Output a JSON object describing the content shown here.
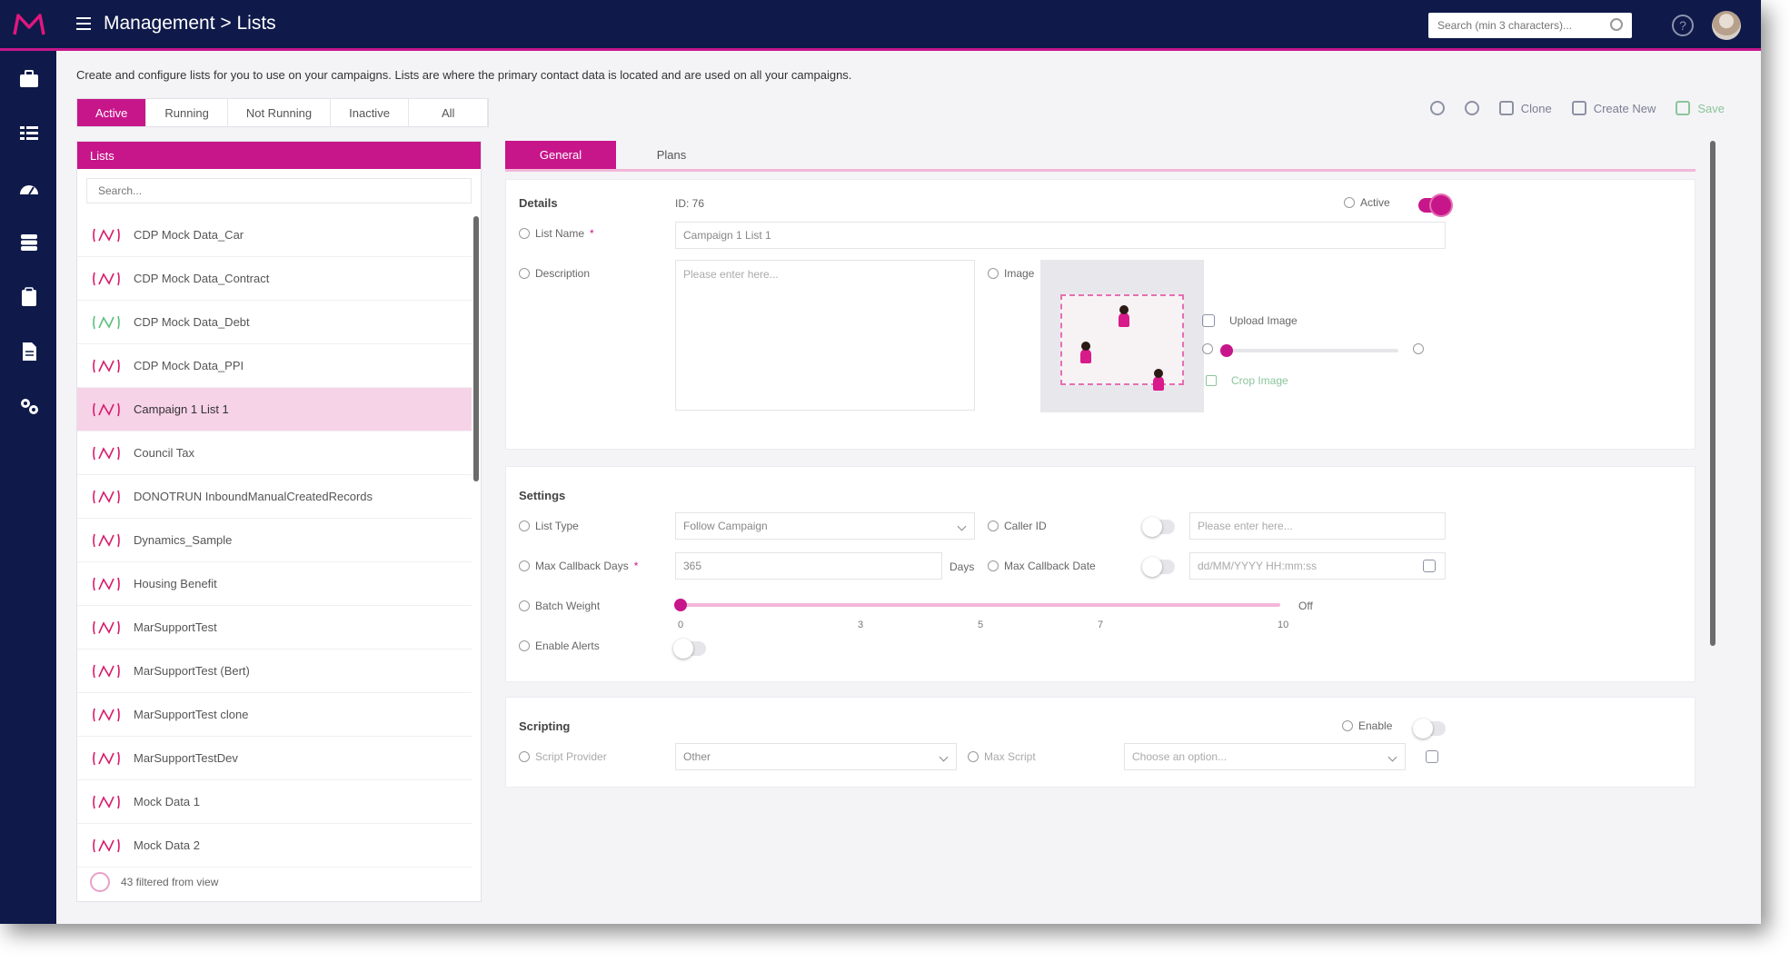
{
  "header": {
    "title": "Management > Lists",
    "search_placeholder": "Search (min 3 characters)...",
    "help_icon": "question-icon",
    "avatar": "user-avatar"
  },
  "rail": {
    "items": [
      "briefcase-icon",
      "list-icon",
      "dashboard-icon",
      "database-icon",
      "clipboard-icon",
      "document-icon",
      "settings-icon"
    ]
  },
  "page": {
    "description": "Create and configure lists for you to use on your campaigns. Lists are where the primary contact data is located and are used on all your campaigns."
  },
  "status_tabs": [
    "Active",
    "Running",
    "Not Running",
    "Inactive",
    "All"
  ],
  "toolbar": {
    "clone_label": "Clone",
    "create_label": "Create New",
    "save_label": "Save"
  },
  "lists": {
    "header": "Lists",
    "search_placeholder": "Search...",
    "items": [
      "CDP Mock Data_Car",
      "CDP Mock Data_Contract",
      "CDP Mock Data_Debt",
      "CDP Mock Data_PPI",
      "Campaign 1 List 1",
      "Council Tax",
      "DONOTRUN InboundManualCreatedRecords",
      "Dynamics_Sample",
      "Housing Benefit",
      "MarSupportTest",
      "MarSupportTest (Bert)",
      "MarSupportTest clone",
      "MarSupportTestDev",
      "Mock Data 1",
      "Mock Data 2"
    ],
    "selected_index": 4,
    "footer": "43 filtered from view"
  },
  "detail_tabs": [
    "General",
    "Plans"
  ],
  "details": {
    "title": "Details",
    "id_text": "ID: 76",
    "active_label": "Active",
    "active_on": true,
    "list_name_label": "List Name",
    "list_name_value": "Campaign 1 List 1",
    "description_label": "Description",
    "description_placeholder": "Please enter here...",
    "image_label": "Image",
    "upload_label": "Upload Image",
    "crop_label": "Crop Image"
  },
  "settings": {
    "title": "Settings",
    "list_type_label": "List Type",
    "list_type_value": "Follow Campaign",
    "caller_id_label": "Caller ID",
    "caller_id_placeholder": "Please enter here...",
    "max_callback_days_label": "Max Callback Days",
    "max_callback_days_value": "365",
    "days_label": "Days",
    "max_callback_date_label": "Max Callback Date",
    "max_callback_date_placeholder": "dd/MM/YYYY HH:mm:ss",
    "batch_weight_label": "Batch Weight",
    "batch_weight_value": 0,
    "batch_weight_max": "Off",
    "batch_ticks": [
      "0",
      "3",
      "5",
      "7",
      "10"
    ],
    "enable_alerts_label": "Enable Alerts"
  },
  "scripting": {
    "title": "Scripting",
    "enable_label": "Enable",
    "script_provider_label": "Script Provider",
    "script_provider_value": "Other",
    "max_script_label": "Max Script",
    "max_script_placeholder": "Choose an option..."
  }
}
